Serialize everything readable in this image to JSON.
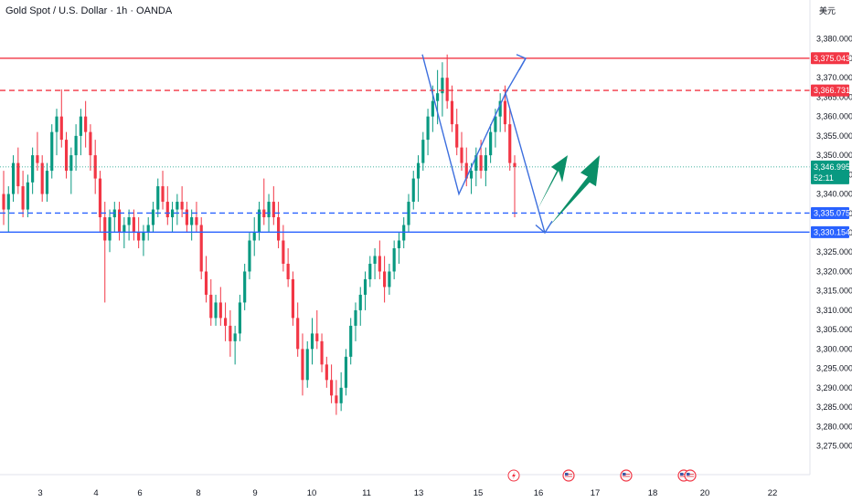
{
  "header": {
    "title": "Gold Spot / U.S. Dollar · 1h · OANDA",
    "currency": "美元"
  },
  "colors": {
    "up": "#089981",
    "down": "#f23645",
    "red_line": "#f23645",
    "blue_line": "#2962ff",
    "projection": "#3d6fde",
    "arrow_green": "#0b8f68",
    "price_tag": "#089981",
    "last_dotted": "#089981"
  },
  "chart_data": {
    "type": "candlestick",
    "title": "Gold Spot / U.S. Dollar · 1h · OANDA",
    "ylim": [
      3273,
      3383
    ],
    "y_ticks": [
      3380,
      3375,
      3370,
      3365,
      3360,
      3355,
      3350,
      3345,
      3340,
      3335,
      3330,
      3325,
      3320,
      3315,
      3310,
      3305,
      3300,
      3295,
      3290,
      3285,
      3280,
      3275
    ],
    "y_tick_labels": [
      "3,380.000",
      "3,375.000",
      "3,370.000",
      "3,365.000",
      "3,360.000",
      "3,355.000",
      "3,350.000",
      "3,345.000",
      "3,340.000",
      "3,335.000",
      "3,330.000",
      "3,325.000",
      "3,320.000",
      "3,315.000",
      "3,310.000",
      "3,305.000",
      "3,300.000",
      "3,295.000",
      "3,290.000",
      "3,285.000",
      "3,280.000",
      "3,275.000"
    ],
    "x_ticks": [
      "3",
      "4",
      "6",
      "8",
      "9",
      "10",
      "11",
      "13",
      "15",
      "16",
      "17",
      "18",
      "20",
      "22"
    ],
    "levels": [
      {
        "value": 3375.043,
        "label": "3,375.043",
        "style": "solid",
        "color": "red"
      },
      {
        "value": 3366.731,
        "label": "3,366.731",
        "style": "dashed",
        "color": "red"
      },
      {
        "value": 3335.075,
        "label": "3,335.075",
        "style": "dashed",
        "color": "blue"
      },
      {
        "value": 3330.154,
        "label": "3,330.154",
        "style": "solid",
        "color": "blue"
      }
    ],
    "last_price": {
      "value": 3346.995,
      "label": "3,346.995",
      "countdown": "52:11"
    },
    "candles": [
      [
        3340,
        3346,
        3332,
        3336
      ],
      [
        3336,
        3342,
        3330,
        3340
      ],
      [
        3340,
        3350,
        3338,
        3348
      ],
      [
        3348,
        3352,
        3340,
        3342
      ],
      [
        3342,
        3346,
        3334,
        3336
      ],
      [
        3336,
        3345,
        3334,
        3343
      ],
      [
        3343,
        3352,
        3340,
        3350
      ],
      [
        3350,
        3356,
        3346,
        3348
      ],
      [
        3348,
        3350,
        3338,
        3340
      ],
      [
        3340,
        3348,
        3338,
        3346
      ],
      [
        3346,
        3358,
        3344,
        3356
      ],
      [
        3356,
        3362,
        3350,
        3360
      ],
      [
        3360,
        3367,
        3352,
        3354
      ],
      [
        3354,
        3356,
        3344,
        3346
      ],
      [
        3346,
        3352,
        3340,
        3350
      ],
      [
        3350,
        3358,
        3346,
        3355
      ],
      [
        3355,
        3362,
        3350,
        3360
      ],
      [
        3360,
        3364,
        3352,
        3356
      ],
      [
        3356,
        3358,
        3346,
        3350
      ],
      [
        3350,
        3354,
        3340,
        3344
      ],
      [
        3344,
        3346,
        3330,
        3334
      ],
      [
        3334,
        3338,
        3312,
        3328
      ],
      [
        3328,
        3336,
        3325,
        3334
      ],
      [
        3334,
        3338,
        3330,
        3336
      ],
      [
        3336,
        3338,
        3328,
        3330
      ],
      [
        3330,
        3334,
        3326,
        3332
      ],
      [
        3332,
        3336,
        3328,
        3334
      ],
      [
        3334,
        3336,
        3328,
        3330
      ],
      [
        3330,
        3334,
        3326,
        3328
      ],
      [
        3328,
        3332,
        3324,
        3330
      ],
      [
        3330,
        3334,
        3328,
        3332
      ],
      [
        3332,
        3338,
        3330,
        3336
      ],
      [
        3336,
        3344,
        3334,
        3342
      ],
      [
        3342,
        3346,
        3336,
        3338
      ],
      [
        3338,
        3342,
        3332,
        3334
      ],
      [
        3334,
        3338,
        3330,
        3336
      ],
      [
        3336,
        3340,
        3332,
        3338
      ],
      [
        3338,
        3342,
        3334,
        3336
      ],
      [
        3336,
        3338,
        3330,
        3332
      ],
      [
        3332,
        3336,
        3328,
        3334
      ],
      [
        3334,
        3338,
        3330,
        3332
      ],
      [
        3332,
        3334,
        3318,
        3320
      ],
      [
        3320,
        3324,
        3312,
        3314
      ],
      [
        3314,
        3318,
        3306,
        3308
      ],
      [
        3308,
        3314,
        3306,
        3312
      ],
      [
        3312,
        3316,
        3306,
        3308
      ],
      [
        3308,
        3312,
        3302,
        3306
      ],
      [
        3306,
        3310,
        3298,
        3302
      ],
      [
        3302,
        3306,
        3296,
        3304
      ],
      [
        3304,
        3314,
        3302,
        3312
      ],
      [
        3312,
        3322,
        3310,
        3320
      ],
      [
        3320,
        3330,
        3318,
        3328
      ],
      [
        3328,
        3334,
        3324,
        3330
      ],
      [
        3330,
        3338,
        3328,
        3336
      ],
      [
        3336,
        3344,
        3332,
        3334
      ],
      [
        3334,
        3340,
        3330,
        3338
      ],
      [
        3338,
        3342,
        3332,
        3334
      ],
      [
        3334,
        3338,
        3326,
        3328
      ],
      [
        3328,
        3332,
        3320,
        3322
      ],
      [
        3322,
        3326,
        3316,
        3318
      ],
      [
        3318,
        3320,
        3306,
        3308
      ],
      [
        3308,
        3312,
        3298,
        3300
      ],
      [
        3300,
        3304,
        3288,
        3292
      ],
      [
        3292,
        3302,
        3290,
        3300
      ],
      [
        3300,
        3308,
        3296,
        3304
      ],
      [
        3304,
        3310,
        3300,
        3302
      ],
      [
        3302,
        3304,
        3294,
        3296
      ],
      [
        3296,
        3298,
        3290,
        3292
      ],
      [
        3292,
        3296,
        3286,
        3288
      ],
      [
        3288,
        3292,
        3283,
        3286
      ],
      [
        3286,
        3294,
        3284,
        3290
      ],
      [
        3290,
        3300,
        3288,
        3298
      ],
      [
        3298,
        3308,
        3296,
        3306
      ],
      [
        3306,
        3312,
        3302,
        3310
      ],
      [
        3310,
        3316,
        3306,
        3314
      ],
      [
        3314,
        3320,
        3310,
        3318
      ],
      [
        3318,
        3324,
        3316,
        3322
      ],
      [
        3322,
        3326,
        3318,
        3324
      ],
      [
        3324,
        3328,
        3318,
        3320
      ],
      [
        3320,
        3324,
        3312,
        3316
      ],
      [
        3316,
        3322,
        3314,
        3320
      ],
      [
        3320,
        3328,
        3318,
        3326
      ],
      [
        3326,
        3330,
        3322,
        3328
      ],
      [
        3328,
        3334,
        3326,
        3332
      ],
      [
        3332,
        3340,
        3330,
        3338
      ],
      [
        3338,
        3346,
        3336,
        3344
      ],
      [
        3344,
        3350,
        3338,
        3348
      ],
      [
        3348,
        3356,
        3346,
        3354
      ],
      [
        3354,
        3362,
        3350,
        3360
      ],
      [
        3360,
        3368,
        3356,
        3364
      ],
      [
        3364,
        3372,
        3358,
        3366
      ],
      [
        3366,
        3374,
        3360,
        3370
      ],
      [
        3370,
        3376,
        3362,
        3364
      ],
      [
        3364,
        3368,
        3356,
        3358
      ],
      [
        3358,
        3362,
        3350,
        3352
      ],
      [
        3352,
        3356,
        3346,
        3348
      ],
      [
        3348,
        3352,
        3342,
        3344
      ],
      [
        3344,
        3348,
        3340,
        3346
      ],
      [
        3346,
        3352,
        3342,
        3350
      ],
      [
        3350,
        3354,
        3344,
        3346
      ],
      [
        3346,
        3352,
        3342,
        3350
      ],
      [
        3350,
        3358,
        3348,
        3356
      ],
      [
        3356,
        3362,
        3352,
        3360
      ],
      [
        3360,
        3366,
        3356,
        3364
      ],
      [
        3364,
        3368,
        3356,
        3358
      ],
      [
        3358,
        3362,
        3346,
        3348
      ],
      [
        3348,
        3350,
        3334,
        3347
      ]
    ]
  },
  "markers": [
    "lightning-icon",
    "flag-us-icon",
    "flag-us-icon",
    "flag-us-icon",
    "flag-us-icon"
  ]
}
